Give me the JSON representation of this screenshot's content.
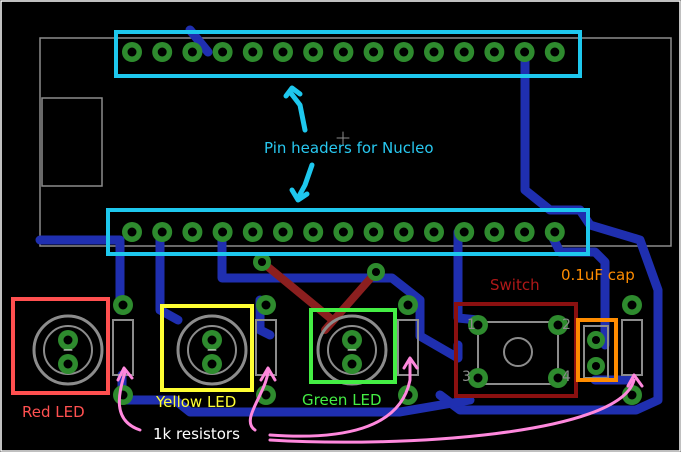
{
  "labels": {
    "pin_headers": "Pin headers for Nucleo",
    "switch": "Switch",
    "cap": "0.1uF cap",
    "red_led": "Red LED",
    "yellow_led": "Yellow LED",
    "green_led": "Green LED",
    "resistors": "1k resistors"
  },
  "switch_pins": [
    "1",
    "2",
    "3",
    "4"
  ],
  "header_pin_count": 15,
  "colors": {
    "background": "#000000",
    "board_outline": "#ffffff",
    "silkscreen": "#8c8c8c",
    "trace": "#1f2fb0",
    "trace_top": "#8b1f1f",
    "pad": "#2e8b2e",
    "annotation_header": "#1ec8ee",
    "annotation_switch": "#8b1010",
    "annotation_cap": "#ff8c00",
    "annotation_red": "#ff5050",
    "annotation_yellow": "#ffff33",
    "annotation_green": "#44ee44",
    "annotation_resistor": "#ff88dd",
    "annotation_header_text": "#28c8f0",
    "annotation_switch_text": "#b01818",
    "annotation_cap_text": "#ff8c00",
    "annotation_red_text": "#ff5050",
    "annotation_yellow_text": "#ffff33",
    "annotation_green_text": "#44ee44",
    "annotation_resistor_text": "#ffffff"
  }
}
